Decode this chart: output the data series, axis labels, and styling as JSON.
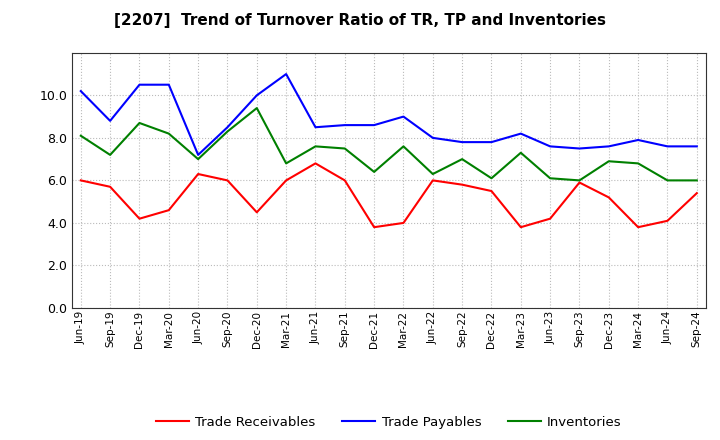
{
  "title": "[2207]  Trend of Turnover Ratio of TR, TP and Inventories",
  "x_labels": [
    "Jun-19",
    "Sep-19",
    "Dec-19",
    "Mar-20",
    "Jun-20",
    "Sep-20",
    "Dec-20",
    "Mar-21",
    "Jun-21",
    "Sep-21",
    "Dec-21",
    "Mar-22",
    "Jun-22",
    "Sep-22",
    "Dec-22",
    "Mar-23",
    "Jun-23",
    "Sep-23",
    "Dec-23",
    "Mar-24",
    "Jun-24",
    "Sep-24"
  ],
  "trade_receivables": [
    6.0,
    5.7,
    4.2,
    4.6,
    6.3,
    6.0,
    4.5,
    6.0,
    6.8,
    6.0,
    3.8,
    4.0,
    6.0,
    5.8,
    5.5,
    3.8,
    4.2,
    5.9,
    5.2,
    3.8,
    4.1,
    5.4
  ],
  "trade_payables": [
    10.2,
    8.8,
    10.5,
    10.5,
    7.2,
    8.5,
    10.0,
    11.0,
    8.5,
    8.6,
    8.6,
    9.0,
    8.0,
    7.8,
    7.8,
    8.2,
    7.6,
    7.5,
    7.6,
    7.9,
    7.6,
    7.6
  ],
  "inventories": [
    8.1,
    7.2,
    8.7,
    8.2,
    7.0,
    8.3,
    9.4,
    6.8,
    7.6,
    7.5,
    6.4,
    7.6,
    6.3,
    7.0,
    6.1,
    7.3,
    6.1,
    6.0,
    6.9,
    6.8,
    6.0,
    6.0
  ],
  "ylim": [
    0.0,
    12.0
  ],
  "yticks": [
    0.0,
    2.0,
    4.0,
    6.0,
    8.0,
    10.0
  ],
  "color_tr": "#ff0000",
  "color_tp": "#0000ff",
  "color_inv": "#008000",
  "legend_labels": [
    "Trade Receivables",
    "Trade Payables",
    "Inventories"
  ],
  "background_color": "#ffffff",
  "grid_color": "#bbbbbb"
}
